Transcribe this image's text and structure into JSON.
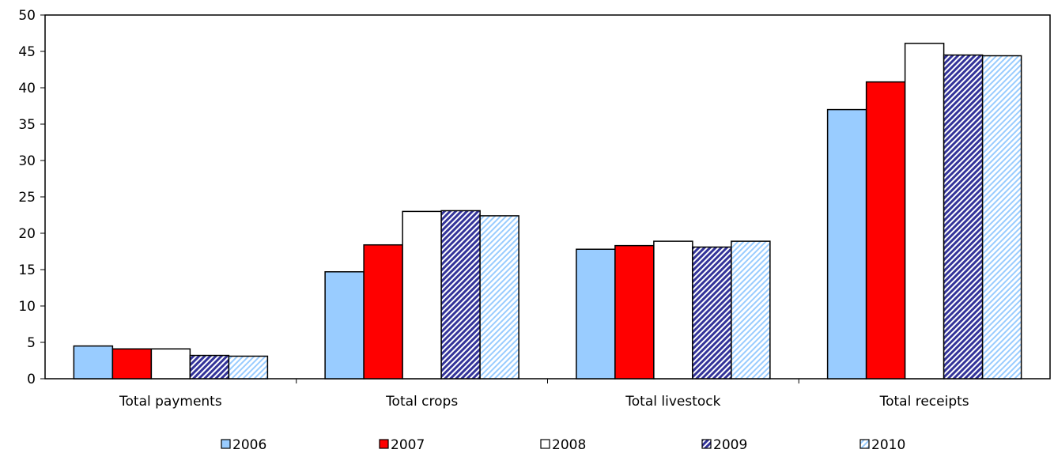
{
  "chart_data": {
    "type": "bar",
    "categories": [
      "Total payments",
      "Total crops",
      "Total livestock",
      "Total receipts"
    ],
    "series": [
      {
        "name": "2006",
        "values": [
          4.5,
          14.7,
          17.8,
          37.0
        ],
        "color": "#99ccff",
        "pattern": "solid"
      },
      {
        "name": "2007",
        "values": [
          4.1,
          18.4,
          18.3,
          40.8
        ],
        "color": "#ff0000",
        "pattern": "solid"
      },
      {
        "name": "2008",
        "values": [
          4.1,
          23.0,
          18.9,
          46.1
        ],
        "color": "#ffffff",
        "pattern": "solid"
      },
      {
        "name": "2009",
        "values": [
          3.2,
          23.1,
          18.1,
          44.5
        ],
        "color": "#333399",
        "pattern": "dense-diagonal"
      },
      {
        "name": "2010",
        "values": [
          3.1,
          22.4,
          18.9,
          44.4
        ],
        "color": "#99ccff",
        "pattern": "light-diagonal"
      }
    ],
    "ylim": [
      0,
      50
    ],
    "yticks": [
      "0",
      "5",
      "10",
      "15",
      "20",
      "25",
      "30",
      "35",
      "40",
      "45",
      "50"
    ],
    "xlabel": "",
    "ylabel": "",
    "grid": false,
    "legend_position": "bottom"
  }
}
